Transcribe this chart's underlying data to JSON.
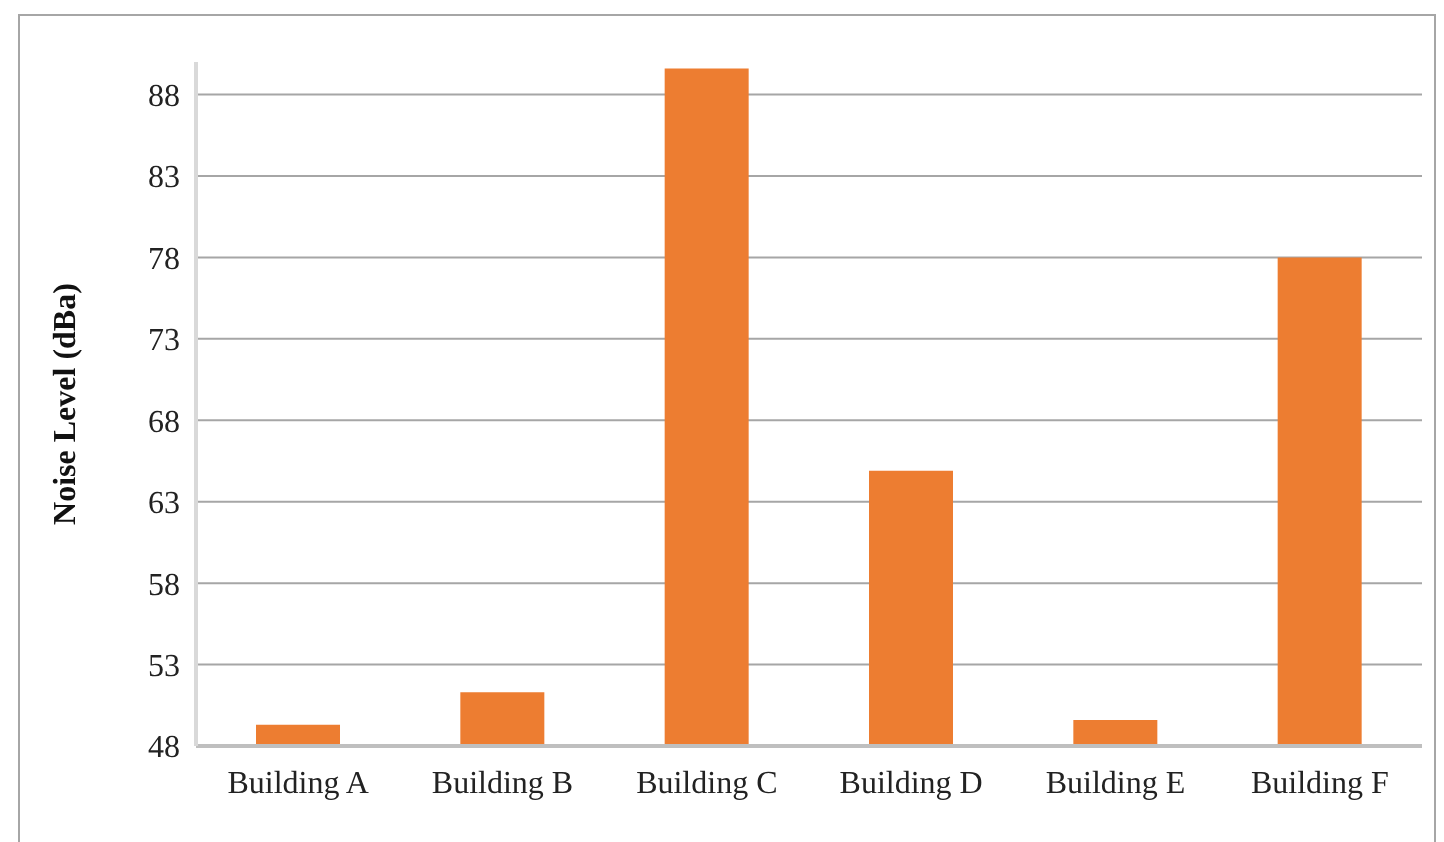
{
  "chart_data": {
    "type": "bar",
    "ylabel": "Noise Level (dBa)",
    "categories": [
      "Building A",
      "Building B",
      "Building C",
      "Building D",
      "Building E",
      "Building F"
    ],
    "values": [
      49.3,
      51.3,
      89.6,
      64.9,
      49.6,
      78
    ],
    "color": "#ed7d31",
    "ylim": [
      48,
      90
    ],
    "yticks": [
      48,
      53,
      58,
      63,
      68,
      73,
      78,
      83,
      88
    ],
    "grid": "y"
  }
}
